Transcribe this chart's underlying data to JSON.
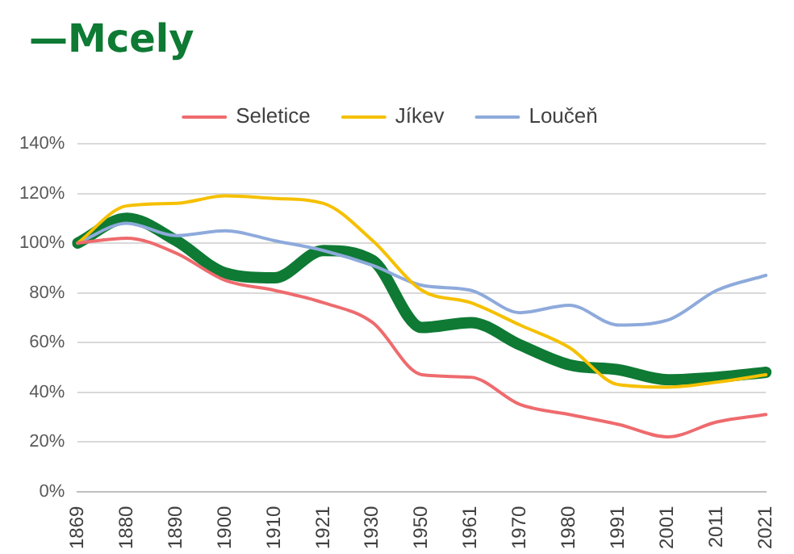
{
  "chart_data": {
    "type": "line",
    "title": "—Mcely",
    "categories": [
      "1869",
      "1880",
      "1890",
      "1900",
      "1910",
      "1921",
      "1930",
      "1950",
      "1961",
      "1970",
      "1980",
      "1991",
      "2001",
      "2011",
      "2021"
    ],
    "series": [
      {
        "name": "Seletice",
        "color": "#ee6b6e",
        "values": [
          100,
          102,
          96,
          85,
          81,
          76,
          68,
          47,
          46,
          35,
          31,
          27,
          22,
          28,
          31
        ]
      },
      {
        "name": "Jíkev",
        "color": "#f5c000",
        "values": [
          100,
          115,
          116,
          119,
          118,
          116,
          101,
          81,
          76,
          67,
          58,
          43,
          42,
          44,
          47
        ]
      },
      {
        "name": "Loučeň",
        "color": "#8eaadb",
        "values": [
          100,
          108,
          103,
          105,
          101,
          97,
          91,
          83,
          81,
          72,
          75,
          67,
          69,
          81,
          87
        ]
      },
      {
        "color": "#0e7a34",
        "values": [
          100,
          110,
          101,
          88,
          86,
          97,
          93,
          66,
          68,
          59,
          51,
          49,
          45,
          46,
          48
        ]
      }
    ],
    "ylim": [
      0,
      140
    ],
    "yticks": [
      {
        "value": 0,
        "label": "0%"
      },
      {
        "value": 20,
        "label": "20%"
      },
      {
        "value": 40,
        "label": "40%"
      },
      {
        "value": 60,
        "label": "60%"
      },
      {
        "value": 80,
        "label": "80%"
      },
      {
        "value": 100,
        "label": "100%"
      },
      {
        "value": 120,
        "label": "120%"
      },
      {
        "value": 140,
        "label": "140%"
      }
    ],
    "grid": "y",
    "legend": "top",
    "marker": "none",
    "line_style": "solid"
  }
}
